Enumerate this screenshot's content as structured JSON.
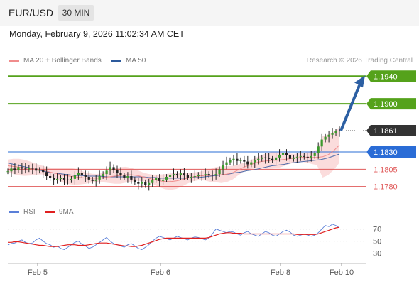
{
  "header": {
    "symbol": "EUR/USD",
    "timeframe": "30 MIN",
    "datetime": "Monday, February 9, 2026 11:02:34 AM CET"
  },
  "legend": {
    "ma20": {
      "label": "MA 20 + Bollinger Bands",
      "color": "#f08c8c"
    },
    "ma50": {
      "label": "MA 50",
      "color": "#2c5a9c"
    },
    "copyright": "Research © 2026 Trading Central"
  },
  "rsi_legend": {
    "rsi": {
      "label": "RSI",
      "color": "#5a7fd8"
    },
    "ma9": {
      "label": "9MA",
      "color": "#e02020"
    }
  },
  "chart_data": [
    {
      "type": "candlestick",
      "title": "",
      "ylim": [
        1.176,
        1.1965
      ],
      "x_ticks": [
        "Feb 5",
        "Feb 6",
        "Feb 8",
        "Feb 10"
      ],
      "levels": [
        {
          "value": 1.194,
          "label": "1.1940",
          "kind": "target",
          "color": "#55a21b"
        },
        {
          "value": 1.19,
          "label": "1.1900",
          "kind": "resistance",
          "color": "#55a21b"
        },
        {
          "value": 1.1861,
          "label": "1.1861",
          "kind": "last-price",
          "color": "#333333"
        },
        {
          "value": 1.183,
          "label": "1.1830",
          "kind": "pivot",
          "color": "#2a6cd6"
        },
        {
          "value": 1.1805,
          "label": "1.1805",
          "kind": "support",
          "color": "#e05a5a"
        },
        {
          "value": 1.178,
          "label": "1.1780",
          "kind": "support",
          "color": "#e05a5a"
        }
      ],
      "close_series": [
        1.1802,
        1.1806,
        1.1804,
        1.1808,
        1.1806,
        1.1805,
        1.1807,
        1.1806,
        1.1803,
        1.1804,
        1.1801,
        1.1795,
        1.1792,
        1.179,
        1.1791,
        1.1792,
        1.179,
        1.1789,
        1.1791,
        1.1796,
        1.18,
        1.1797,
        1.1794,
        1.179,
        1.1788,
        1.179,
        1.1795,
        1.1798,
        1.1803,
        1.1808,
        1.1804,
        1.18,
        1.1796,
        1.1793,
        1.1795,
        1.179,
        1.1786,
        1.1784,
        1.1786,
        1.1782,
        1.1785,
        1.1789,
        1.1792,
        1.1788,
        1.179,
        1.1794,
        1.1796,
        1.1798,
        1.1797,
        1.1799,
        1.1796,
        1.1793,
        1.1794,
        1.1795,
        1.1797,
        1.1796,
        1.1798,
        1.1797,
        1.1796,
        1.1798,
        1.1805,
        1.1811,
        1.1815,
        1.1818,
        1.182,
        1.1817,
        1.1818,
        1.1816,
        1.1812,
        1.1815,
        1.1818,
        1.182,
        1.1822,
        1.1821,
        1.182,
        1.1818,
        1.1822,
        1.1826,
        1.1828,
        1.1825,
        1.182,
        1.1822,
        1.1823,
        1.1824,
        1.1823,
        1.1822,
        1.1824,
        1.1828,
        1.1838,
        1.1848,
        1.1852,
        1.1855,
        1.1857,
        1.186,
        1.1861
      ],
      "ma20_series": [
        1.181,
        1.1809,
        1.1808,
        1.1807,
        1.1806,
        1.1805,
        1.1804,
        1.1802,
        1.18,
        1.1798,
        1.1796,
        1.1795,
        1.1794,
        1.1793,
        1.1792,
        1.1792,
        1.1792,
        1.1793,
        1.1794,
        1.1795,
        1.1796,
        1.1797,
        1.1797,
        1.1796,
        1.1794,
        1.1792,
        1.179,
        1.1788,
        1.1787,
        1.1787,
        1.1788,
        1.179,
        1.1792,
        1.1794,
        1.1795,
        1.1796,
        1.1796,
        1.1797,
        1.1797,
        1.1798,
        1.18,
        1.1804,
        1.1808,
        1.1811,
        1.1814,
        1.1816,
        1.1817,
        1.1818,
        1.1818,
        1.1819,
        1.182,
        1.1821,
        1.1822,
        1.1822,
        1.1822,
        1.1822,
        1.1823,
        1.1826,
        1.1832,
        1.184
      ],
      "ma50_series": [
        1.1814,
        1.1812,
        1.181,
        1.1808,
        1.1806,
        1.1804,
        1.1802,
        1.18,
        1.1799,
        1.1798,
        1.1797,
        1.1796,
        1.1796,
        1.1795,
        1.1795,
        1.1795,
        1.1794,
        1.1794,
        1.1794,
        1.1794,
        1.1794,
        1.1794,
        1.1794,
        1.1793,
        1.1793,
        1.1792,
        1.1792,
        1.1792,
        1.1792,
        1.1792,
        1.1793,
        1.1793,
        1.1794,
        1.1795,
        1.1796,
        1.1797,
        1.1798,
        1.18,
        1.1801,
        1.1803,
        1.1804,
        1.1806,
        1.1808,
        1.181,
        1.1811,
        1.1812,
        1.1814,
        1.1815,
        1.1816,
        1.1817,
        1.1818,
        1.1819,
        1.1821,
        1.1824,
        1.1827
      ]
    },
    {
      "type": "line",
      "title": "RSI",
      "ylim": [
        20,
        85
      ],
      "y_ticks": [
        70,
        50,
        30
      ],
      "series": [
        {
          "name": "RSI",
          "values": [
            44,
            46,
            47,
            50,
            52,
            48,
            46,
            47,
            52,
            55,
            50,
            46,
            44,
            40,
            42,
            38,
            36,
            40,
            44,
            48,
            50,
            45,
            42,
            38,
            40,
            44,
            48,
            52,
            56,
            50,
            46,
            44,
            42,
            40,
            44,
            46,
            42,
            38,
            36,
            40,
            44,
            50,
            55,
            58,
            56,
            54,
            52,
            55,
            58,
            56,
            54,
            52,
            55,
            57,
            56,
            54,
            52,
            55,
            62,
            70,
            68,
            66,
            64,
            66,
            65,
            62,
            60,
            64,
            66,
            62,
            60,
            58,
            62,
            66,
            64,
            60,
            58,
            62,
            66,
            68,
            65,
            60,
            58,
            60,
            62,
            60,
            58,
            60,
            64,
            70,
            76,
            74,
            78,
            76,
            72
          ]
        },
        {
          "name": "9MA",
          "values": [
            48,
            48,
            49,
            49,
            48,
            47,
            46,
            45,
            44,
            43,
            43,
            42,
            41,
            41,
            41,
            42,
            43,
            44,
            44,
            44,
            43,
            43,
            43,
            44,
            45,
            46,
            47,
            47,
            47,
            46,
            45,
            44,
            43,
            42,
            42,
            41,
            41,
            42,
            43,
            45,
            47,
            49,
            51,
            53,
            54,
            55,
            55,
            55,
            55,
            55,
            55,
            55,
            55,
            55,
            55,
            55,
            55,
            56,
            58,
            60,
            62,
            63,
            64,
            64,
            63,
            63,
            63,
            62,
            62,
            62,
            62,
            62,
            62,
            62,
            62,
            62,
            62,
            62,
            62,
            62,
            62,
            62,
            61,
            61,
            61,
            61,
            61,
            61,
            62,
            64,
            66,
            68,
            70,
            72,
            73
          ]
        }
      ]
    }
  ]
}
